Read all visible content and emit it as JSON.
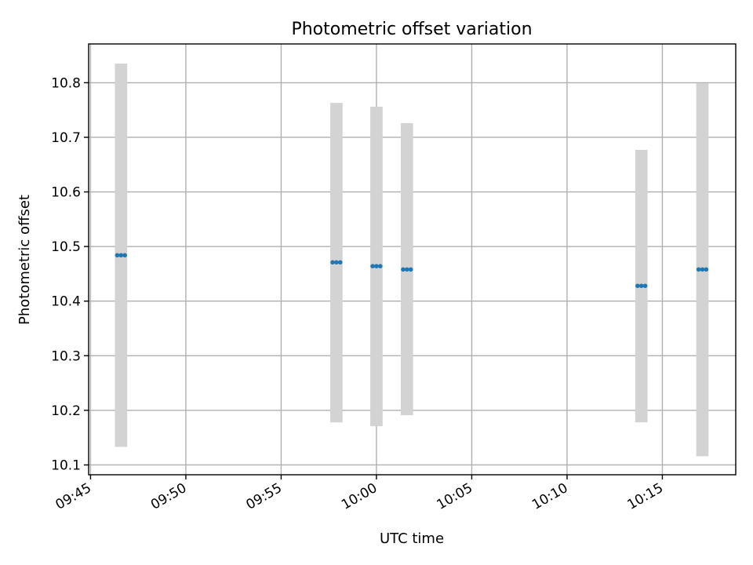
{
  "chart_data": {
    "type": "scatter",
    "title": "Photometric offset variation",
    "xlabel": "UTC time",
    "ylabel": "Photometric offset",
    "x_ticks": [
      "09:45",
      "09:50",
      "09:55",
      "10:00",
      "10:05",
      "10:10",
      "10:15"
    ],
    "y_ticks": [
      "10.1",
      "10.2",
      "10.3",
      "10.4",
      "10.5",
      "10.6",
      "10.7",
      "10.8"
    ],
    "xlim": [
      "09:44:54",
      "10:18:51"
    ],
    "ylim": [
      10.082,
      10.871
    ],
    "grid": true,
    "marker_color": "#1f77b4",
    "errorbar_color": "#d3d3d3",
    "points": [
      {
        "time": "09:46:24",
        "offset": 10.484,
        "err_low": 10.133,
        "err_high": 10.835
      },
      {
        "time": "09:46:36",
        "offset": 10.484,
        "err_low": 10.133,
        "err_high": 10.835
      },
      {
        "time": "09:46:48",
        "offset": 10.484,
        "err_low": 10.133,
        "err_high": 10.835
      },
      {
        "time": "09:57:42",
        "offset": 10.471,
        "err_low": 10.178,
        "err_high": 10.763
      },
      {
        "time": "09:57:54",
        "offset": 10.471,
        "err_low": 10.178,
        "err_high": 10.763
      },
      {
        "time": "09:58:06",
        "offset": 10.471,
        "err_low": 10.178,
        "err_high": 10.763
      },
      {
        "time": "09:59:48",
        "offset": 10.464,
        "err_low": 10.171,
        "err_high": 10.756
      },
      {
        "time": "10:00:00",
        "offset": 10.464,
        "err_low": 10.171,
        "err_high": 10.756
      },
      {
        "time": "10:00:12",
        "offset": 10.464,
        "err_low": 10.171,
        "err_high": 10.756
      },
      {
        "time": "10:01:24",
        "offset": 10.458,
        "err_low": 10.191,
        "err_high": 10.726
      },
      {
        "time": "10:01:36",
        "offset": 10.458,
        "err_low": 10.191,
        "err_high": 10.726
      },
      {
        "time": "10:01:48",
        "offset": 10.458,
        "err_low": 10.191,
        "err_high": 10.726
      },
      {
        "time": "10:13:42",
        "offset": 10.428,
        "err_low": 10.178,
        "err_high": 10.677
      },
      {
        "time": "10:13:54",
        "offset": 10.428,
        "err_low": 10.178,
        "err_high": 10.677
      },
      {
        "time": "10:14:06",
        "offset": 10.428,
        "err_low": 10.178,
        "err_high": 10.677
      },
      {
        "time": "10:16:54",
        "offset": 10.458,
        "err_low": 10.116,
        "err_high": 10.799
      },
      {
        "time": "10:17:06",
        "offset": 10.458,
        "err_low": 10.116,
        "err_high": 10.799
      },
      {
        "time": "10:17:18",
        "offset": 10.458,
        "err_low": 10.116,
        "err_high": 10.799
      }
    ]
  }
}
